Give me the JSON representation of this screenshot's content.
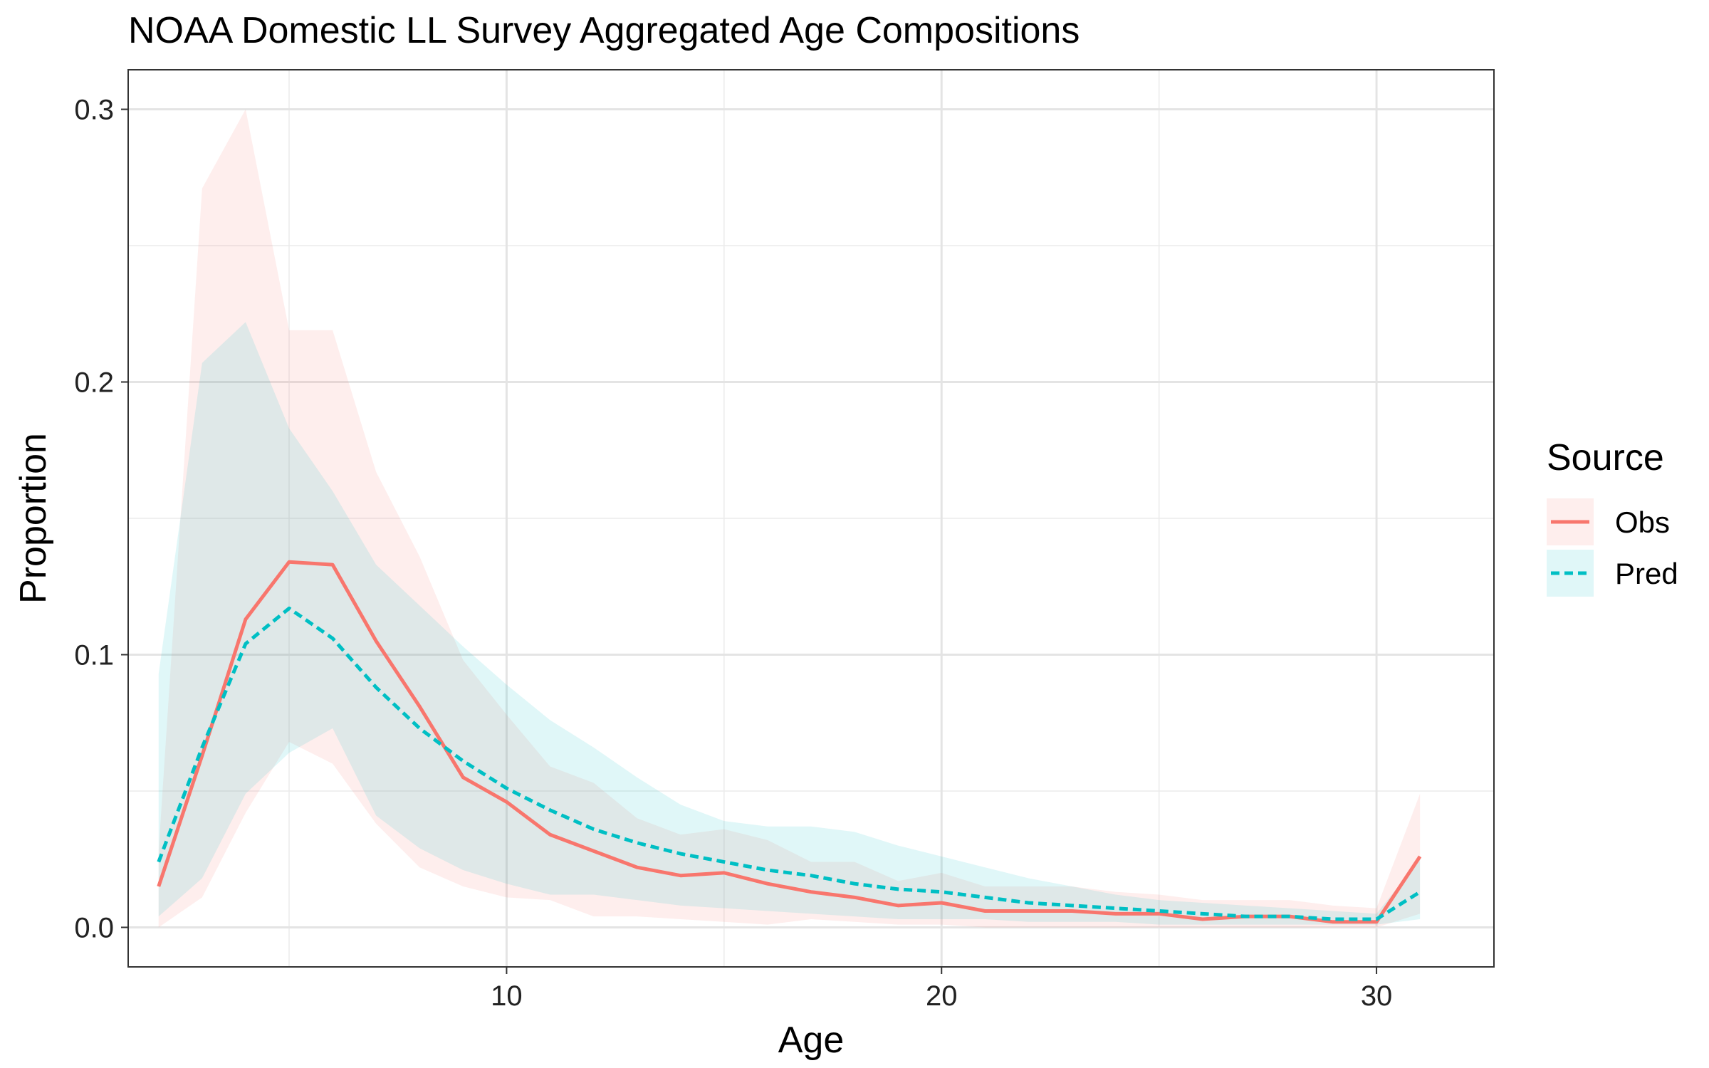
{
  "chart_data": {
    "type": "line",
    "title": "NOAA Domestic LL Survey Aggregated Age Compositions",
    "xlabel": "Age",
    "ylabel": "Proportion",
    "xlim": [
      1.3,
      32.7
    ],
    "ylim": [
      -0.0145,
      0.3145
    ],
    "x_ticks": [
      10,
      20,
      30
    ],
    "x_tick_labels": [
      "10",
      "20",
      "30"
    ],
    "y_ticks": [
      0.0,
      0.1,
      0.2,
      0.3
    ],
    "y_tick_labels": [
      "0.0",
      "0.1",
      "0.2",
      "0.3"
    ],
    "grid": true,
    "legend": {
      "title": "Source",
      "position": "right"
    },
    "x": [
      2,
      3,
      4,
      5,
      6,
      7,
      8,
      9,
      10,
      11,
      12,
      13,
      14,
      15,
      16,
      17,
      18,
      19,
      20,
      21,
      22,
      23,
      24,
      25,
      26,
      27,
      28,
      29,
      30,
      31
    ],
    "series": [
      {
        "name": "Obs",
        "color": "#F8766D",
        "line_style": "solid",
        "values": [
          0.015,
          0.063,
          0.113,
          0.134,
          0.133,
          0.105,
          0.081,
          0.055,
          0.046,
          0.034,
          0.028,
          0.022,
          0.019,
          0.02,
          0.016,
          0.013,
          0.011,
          0.008,
          0.009,
          0.006,
          0.006,
          0.006,
          0.005,
          0.005,
          0.003,
          0.004,
          0.004,
          0.002,
          0.002,
          0.026
        ],
        "lower": [
          0.0,
          0.011,
          0.042,
          0.068,
          0.06,
          0.038,
          0.022,
          0.015,
          0.011,
          0.01,
          0.004,
          0.004,
          0.003,
          0.002,
          0.001,
          0.003,
          0.002,
          0.001,
          0.001,
          0.0,
          0.0,
          0.0,
          0.0,
          0.0,
          0.0,
          0.0,
          0.0,
          0.0,
          0.0,
          0.005
        ],
        "upper": [
          0.028,
          0.271,
          0.3,
          0.219,
          0.219,
          0.167,
          0.136,
          0.098,
          0.078,
          0.059,
          0.053,
          0.04,
          0.034,
          0.036,
          0.032,
          0.024,
          0.024,
          0.017,
          0.02,
          0.015,
          0.015,
          0.015,
          0.013,
          0.012,
          0.01,
          0.01,
          0.01,
          0.008,
          0.007,
          0.049
        ]
      },
      {
        "name": "Pred",
        "color": "#00BFC4",
        "line_style": "dashed",
        "values": [
          0.024,
          0.066,
          0.104,
          0.117,
          0.106,
          0.088,
          0.073,
          0.061,
          0.051,
          0.043,
          0.036,
          0.031,
          0.027,
          0.024,
          0.021,
          0.019,
          0.016,
          0.014,
          0.013,
          0.011,
          0.009,
          0.008,
          0.007,
          0.006,
          0.005,
          0.004,
          0.004,
          0.003,
          0.003,
          0.013
        ],
        "lower": [
          0.004,
          0.018,
          0.049,
          0.064,
          0.073,
          0.041,
          0.029,
          0.021,
          0.016,
          0.012,
          0.012,
          0.01,
          0.008,
          0.007,
          0.006,
          0.005,
          0.004,
          0.003,
          0.003,
          0.003,
          0.002,
          0.002,
          0.002,
          0.001,
          0.001,
          0.001,
          0.001,
          0.001,
          0.001,
          0.003
        ],
        "upper": [
          0.093,
          0.207,
          0.222,
          0.183,
          0.16,
          0.133,
          0.118,
          0.103,
          0.089,
          0.076,
          0.066,
          0.055,
          0.045,
          0.039,
          0.037,
          0.037,
          0.035,
          0.03,
          0.026,
          0.022,
          0.018,
          0.015,
          0.012,
          0.01,
          0.009,
          0.008,
          0.007,
          0.006,
          0.005,
          0.025
        ]
      }
    ]
  }
}
